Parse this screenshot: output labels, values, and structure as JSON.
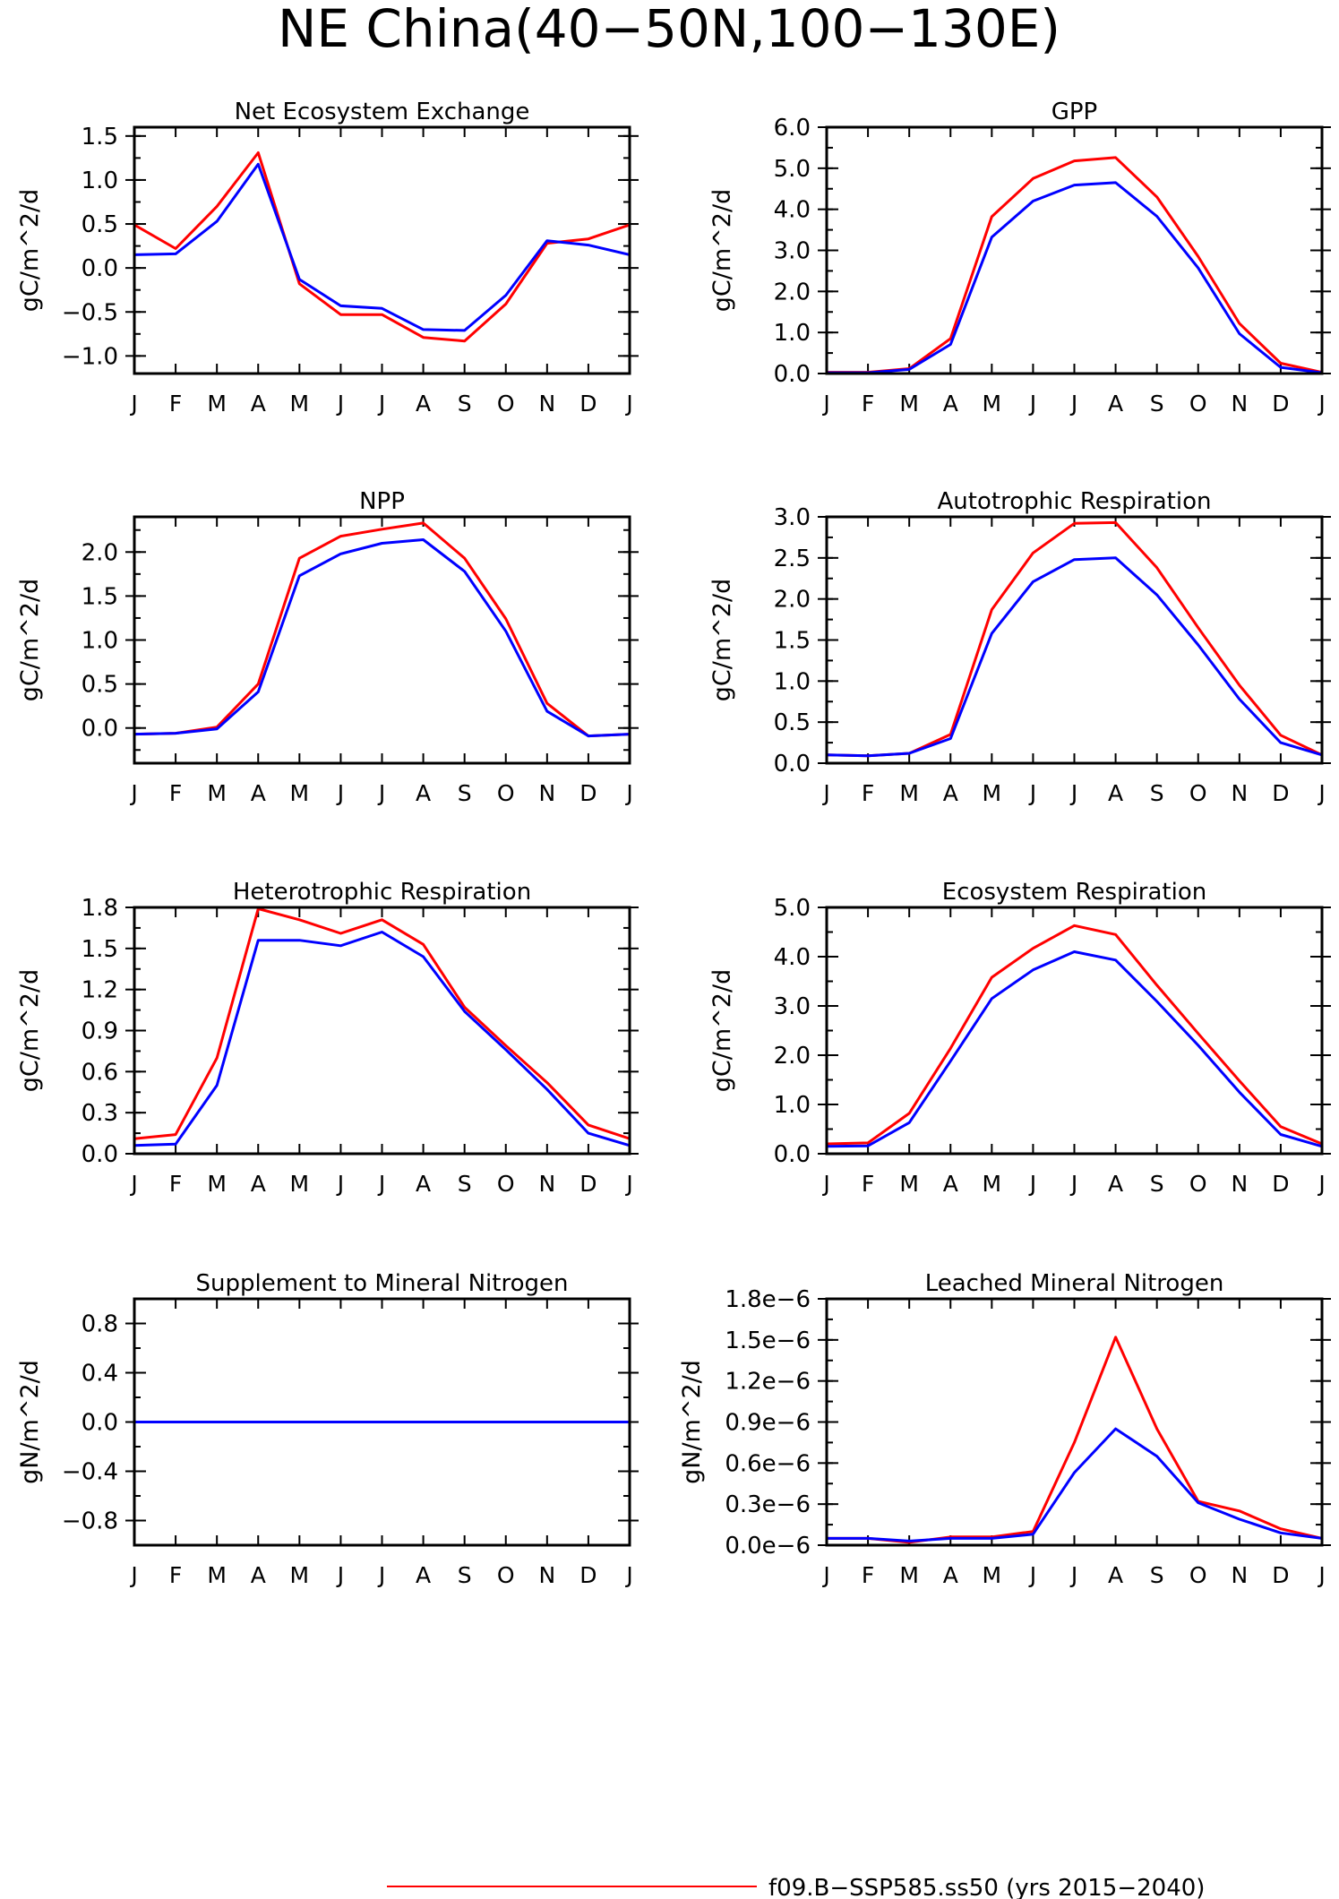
{
  "figure": {
    "title": "NE China(40−50N,100−130E)",
    "legend": [
      {
        "label": "f09.B−SSP585.ss50 (yrs 2015−2040)",
        "color": "#ff0000"
      }
    ]
  },
  "colors": {
    "red": "#ff0000",
    "blue": "#0000ff",
    "frame": "#000000"
  },
  "months": [
    "J",
    "F",
    "M",
    "A",
    "M",
    "J",
    "J",
    "A",
    "S",
    "O",
    "N",
    "D",
    "J"
  ],
  "chart_data": [
    {
      "type": "line",
      "title": "Net Ecosystem Exchange",
      "ylabel": "gC/m^2/d",
      "x": [
        "J",
        "F",
        "M",
        "A",
        "M",
        "J",
        "J",
        "A",
        "S",
        "O",
        "N",
        "D",
        "J"
      ],
      "ylim": [
        -1.2,
        1.6
      ],
      "yticks": [
        1.5,
        1.0,
        0.5,
        0.0,
        -0.5,
        -1.0
      ],
      "yticklabels": [
        "1.5",
        "1.0",
        "0.5",
        "0.0",
        "−0.5",
        "−1.0"
      ],
      "series": [
        {
          "color": "#ff0000",
          "values": [
            0.49,
            0.22,
            0.7,
            1.31,
            -0.18,
            -0.53,
            -0.53,
            -0.79,
            -0.83,
            -0.41,
            0.28,
            0.33,
            0.49
          ]
        },
        {
          "color": "#0000ff",
          "values": [
            0.15,
            0.16,
            0.53,
            1.18,
            -0.13,
            -0.43,
            -0.46,
            -0.7,
            -0.71,
            -0.31,
            0.31,
            0.26,
            0.15
          ]
        }
      ]
    },
    {
      "type": "line",
      "title": "GPP",
      "ylabel": "gC/m^2/d",
      "x": [
        "J",
        "F",
        "M",
        "A",
        "M",
        "J",
        "J",
        "A",
        "S",
        "O",
        "N",
        "D",
        "J"
      ],
      "ylim": [
        0.0,
        6.0
      ],
      "yticks": [
        6.0,
        5.0,
        4.0,
        3.0,
        2.0,
        1.0,
        0.0
      ],
      "yticklabels": [
        "6.0",
        "5.0",
        "4.0",
        "3.0",
        "2.0",
        "1.0",
        "0.0"
      ],
      "series": [
        {
          "color": "#ff0000",
          "values": [
            0.03,
            0.03,
            0.12,
            0.85,
            3.82,
            4.75,
            5.18,
            5.26,
            4.3,
            2.85,
            1.22,
            0.25,
            0.03
          ]
        },
        {
          "color": "#0000ff",
          "values": [
            0.02,
            0.02,
            0.1,
            0.71,
            3.32,
            4.2,
            4.59,
            4.65,
            3.83,
            2.57,
            0.97,
            0.15,
            0.02
          ]
        }
      ]
    },
    {
      "type": "line",
      "title": "NPP",
      "ylabel": "gC/m^2/d",
      "x": [
        "J",
        "F",
        "M",
        "A",
        "M",
        "J",
        "J",
        "A",
        "S",
        "O",
        "N",
        "D",
        "J"
      ],
      "ylim": [
        -0.4,
        2.4
      ],
      "yticks": [
        2.0,
        1.5,
        1.0,
        0.5,
        0.0
      ],
      "yticklabels": [
        "2.0",
        "1.5",
        "1.0",
        "0.5",
        "0.0"
      ],
      "series": [
        {
          "color": "#ff0000",
          "values": [
            -0.07,
            -0.06,
            0.01,
            0.5,
            1.93,
            2.18,
            2.26,
            2.33,
            1.93,
            1.24,
            0.28,
            -0.09,
            -0.07
          ]
        },
        {
          "color": "#0000ff",
          "values": [
            -0.07,
            -0.06,
            -0.01,
            0.41,
            1.73,
            1.98,
            2.1,
            2.14,
            1.78,
            1.1,
            0.19,
            -0.09,
            -0.07
          ]
        }
      ]
    },
    {
      "type": "line",
      "title": "Autotrophic Respiration",
      "ylabel": "gC/m^2/d",
      "x": [
        "J",
        "F",
        "M",
        "A",
        "M",
        "J",
        "J",
        "A",
        "S",
        "O",
        "N",
        "D",
        "J"
      ],
      "ylim": [
        0.0,
        3.0
      ],
      "yticks": [
        3.0,
        2.5,
        2.0,
        1.5,
        1.0,
        0.5,
        0.0
      ],
      "yticklabels": [
        "3.0",
        "2.5",
        "2.0",
        "1.5",
        "1.0",
        "0.5",
        "0.0"
      ],
      "series": [
        {
          "color": "#ff0000",
          "values": [
            0.1,
            0.09,
            0.12,
            0.35,
            1.87,
            2.56,
            2.92,
            2.93,
            2.38,
            1.65,
            0.95,
            0.34,
            0.1
          ]
        },
        {
          "color": "#0000ff",
          "values": [
            0.1,
            0.09,
            0.12,
            0.3,
            1.58,
            2.21,
            2.48,
            2.5,
            2.05,
            1.44,
            0.78,
            0.25,
            0.1
          ]
        }
      ]
    },
    {
      "type": "line",
      "title": "Heterotrophic Respiration",
      "ylabel": "gC/m^2/d",
      "x": [
        "J",
        "F",
        "M",
        "A",
        "M",
        "J",
        "J",
        "A",
        "S",
        "O",
        "N",
        "D",
        "J"
      ],
      "ylim": [
        0.0,
        1.8
      ],
      "yticks": [
        1.8,
        1.5,
        1.2,
        0.9,
        0.6,
        0.3,
        0.0
      ],
      "yticklabels": [
        "1.8",
        "1.5",
        "1.2",
        "0.9",
        "0.6",
        "0.3",
        "0.0"
      ],
      "series": [
        {
          "color": "#ff0000",
          "values": [
            0.11,
            0.14,
            0.7,
            1.79,
            1.71,
            1.61,
            1.71,
            1.53,
            1.07,
            0.79,
            0.52,
            0.21,
            0.11
          ]
        },
        {
          "color": "#0000ff",
          "values": [
            0.06,
            0.07,
            0.5,
            1.56,
            1.56,
            1.52,
            1.62,
            1.44,
            1.04,
            0.76,
            0.47,
            0.15,
            0.06
          ]
        }
      ]
    },
    {
      "type": "line",
      "title": "Ecosystem Respiration",
      "ylabel": "gC/m^2/d",
      "x": [
        "J",
        "F",
        "M",
        "A",
        "M",
        "J",
        "J",
        "A",
        "S",
        "O",
        "N",
        "D",
        "J"
      ],
      "ylim": [
        0.0,
        5.0
      ],
      "yticks": [
        5.0,
        4.0,
        3.0,
        2.0,
        1.0,
        0.0
      ],
      "yticklabels": [
        "5.0",
        "4.0",
        "3.0",
        "2.0",
        "1.0",
        "0.0"
      ],
      "series": [
        {
          "color": "#ff0000",
          "values": [
            0.2,
            0.22,
            0.82,
            2.14,
            3.58,
            4.17,
            4.63,
            4.45,
            3.42,
            2.44,
            1.48,
            0.55,
            0.2
          ]
        },
        {
          "color": "#0000ff",
          "values": [
            0.15,
            0.16,
            0.63,
            1.88,
            3.15,
            3.73,
            4.1,
            3.93,
            3.09,
            2.2,
            1.25,
            0.39,
            0.15
          ]
        }
      ]
    },
    {
      "type": "line",
      "title": "Supplement to Mineral Nitrogen",
      "ylabel": "gN/m^2/d",
      "x": [
        "J",
        "F",
        "M",
        "A",
        "M",
        "J",
        "J",
        "A",
        "S",
        "O",
        "N",
        "D",
        "J"
      ],
      "ylim": [
        -1.0,
        1.0
      ],
      "yticks": [
        0.8,
        0.4,
        0.0,
        -0.4,
        -0.8
      ],
      "yticklabels": [
        "0.8",
        "0.4",
        "0.0",
        "−0.4",
        "−0.8"
      ],
      "series": [
        {
          "color": "#ff0000",
          "values": [
            0,
            0,
            0,
            0,
            0,
            0,
            0,
            0,
            0,
            0,
            0,
            0,
            0
          ]
        },
        {
          "color": "#0000ff",
          "values": [
            0,
            0,
            0,
            0,
            0,
            0,
            0,
            0,
            0,
            0,
            0,
            0,
            0
          ]
        }
      ]
    },
    {
      "type": "line",
      "title": "Leached Mineral Nitrogen",
      "ylabel": "gN/m^2/d",
      "x": [
        "J",
        "F",
        "M",
        "A",
        "M",
        "J",
        "J",
        "A",
        "S",
        "O",
        "N",
        "D",
        "J"
      ],
      "ylim": [
        0.0,
        1.8
      ],
      "yticks": [
        1.8,
        1.5,
        1.2,
        0.9,
        0.6,
        0.3,
        0.0
      ],
      "yticklabels": [
        "1.8e−6",
        "1.5e−6",
        "1.2e−6",
        "0.9e−6",
        "0.6e−6",
        "0.3e−6",
        "0.0e−6"
      ],
      "units_scale": "1e-6",
      "series": [
        {
          "color": "#ff0000",
          "values": [
            0.05,
            0.05,
            0.02,
            0.06,
            0.06,
            0.1,
            0.75,
            1.52,
            0.85,
            0.32,
            0.25,
            0.12,
            0.05
          ]
        },
        {
          "color": "#0000ff",
          "values": [
            0.05,
            0.05,
            0.03,
            0.05,
            0.05,
            0.08,
            0.53,
            0.85,
            0.65,
            0.31,
            0.19,
            0.09,
            0.05
          ]
        }
      ]
    }
  ]
}
